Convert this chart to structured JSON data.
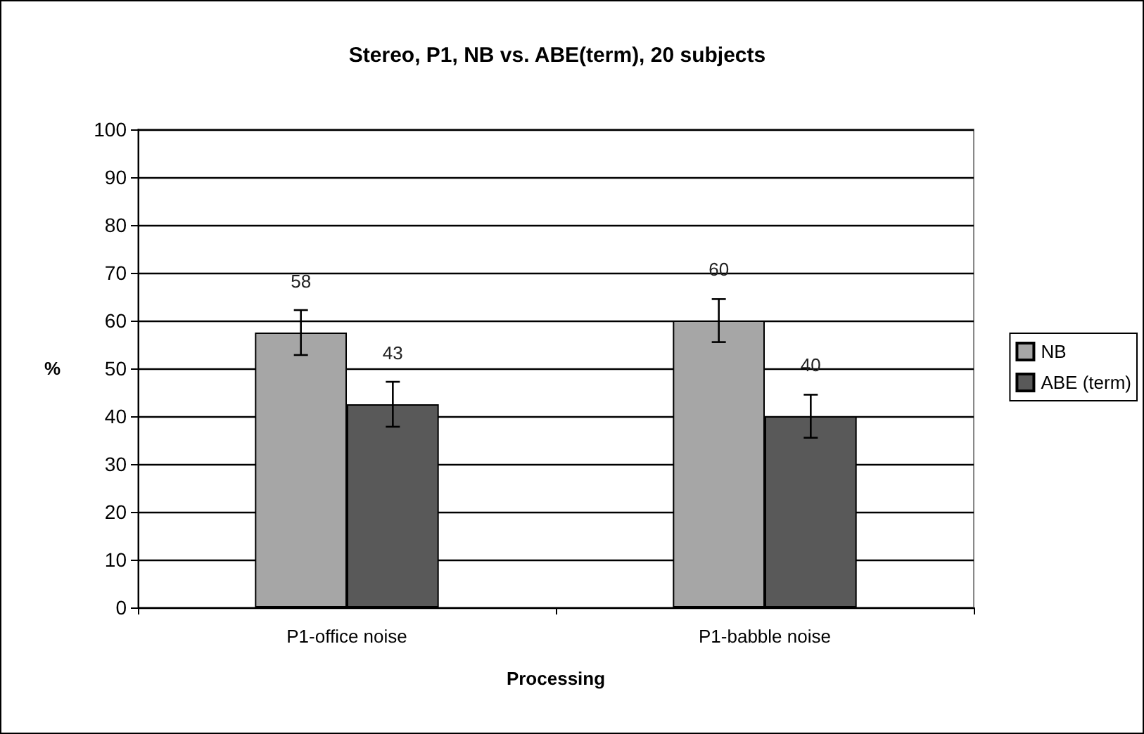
{
  "chart_data": {
    "type": "bar",
    "title": "Stereo, P1, NB vs. ABE(term), 20 subjects",
    "xlabel": "Processing",
    "ylabel": "%",
    "categories": [
      "P1-office noise",
      "P1-babble noise"
    ],
    "series": [
      {
        "name": "NB",
        "color": "#a6a6a6",
        "values": [
          57.5,
          60
        ],
        "errors": [
          4.7,
          4.5
        ],
        "value_labels": [
          "58",
          "60"
        ]
      },
      {
        "name": "ABE (term)",
        "color": "#595959",
        "values": [
          42.5,
          40
        ],
        "errors": [
          4.7,
          4.5
        ],
        "value_labels": [
          "43",
          "40"
        ]
      }
    ],
    "ylim": [
      0,
      100
    ],
    "yticks": [
      0,
      10,
      20,
      30,
      40,
      50,
      60,
      70,
      80,
      90,
      100
    ],
    "grid": "y",
    "legend": "right"
  }
}
